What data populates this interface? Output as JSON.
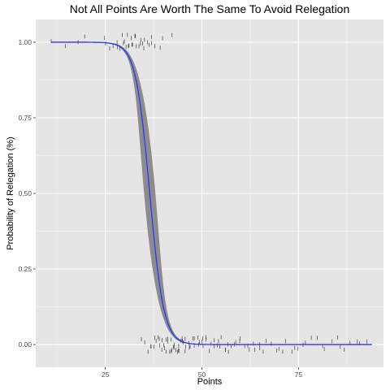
{
  "chart_data": {
    "type": "scatter",
    "title": "Not All Points Are Worth The Same To Avoid Relegation",
    "xlabel": "Points",
    "ylabel": "Probability of Relegation (%)",
    "xlim": [
      7,
      97
    ],
    "ylim": [
      -0.075,
      1.075
    ],
    "x_ticks": [
      25,
      50,
      75
    ],
    "y_ticks": [
      0,
      0.25,
      0.5,
      0.75,
      1.0
    ],
    "x_tick_labels": [
      "25",
      "50",
      "75"
    ],
    "y_tick_labels": [
      "0.00",
      "0.25",
      "0.50",
      "0.75",
      "1.00"
    ],
    "grid": true,
    "background": "#e5e5e5",
    "fit": {
      "model": "logistic",
      "midpoint": 36.5,
      "slope": 0.55,
      "x_range": [
        11,
        94
      ],
      "color": "#3333ff",
      "ribbon_color": "#8c8c8c"
    },
    "points": {
      "relegated": [
        11,
        15,
        18,
        20,
        25,
        25,
        26,
        27,
        28,
        28,
        29,
        29,
        30,
        30,
        30,
        31,
        31,
        31,
        32,
        32,
        32,
        33,
        33,
        33,
        34,
        34,
        34,
        35,
        35,
        35,
        36,
        36,
        37,
        37,
        38,
        39,
        40,
        42
      ],
      "survived": [
        34,
        35,
        36,
        37,
        37,
        38,
        38,
        38,
        39,
        39,
        39,
        40,
        40,
        40,
        40,
        41,
        41,
        41,
        41,
        42,
        42,
        42,
        42,
        43,
        43,
        43,
        43,
        44,
        44,
        44,
        44,
        45,
        45,
        45,
        45,
        46,
        46,
        46,
        47,
        47,
        47,
        48,
        48,
        48,
        49,
        49,
        49,
        50,
        50,
        50,
        51,
        51,
        52,
        52,
        53,
        53,
        54,
        54,
        55,
        55,
        56,
        56,
        57,
        57,
        58,
        58,
        59,
        60,
        60,
        61,
        62,
        62,
        63,
        64,
        65,
        65,
        66,
        67,
        68,
        69,
        70,
        71,
        72,
        73,
        74,
        75,
        76,
        77,
        78,
        80,
        81,
        82,
        84,
        85,
        86,
        87,
        88,
        90,
        91,
        93
      ]
    }
  }
}
